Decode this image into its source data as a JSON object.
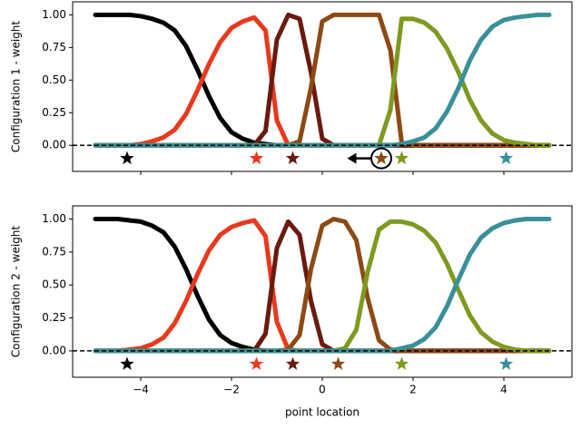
{
  "chart_data": [
    {
      "type": "line",
      "ylabel": "Configuration 1 - weight",
      "xlim": [
        -5.5,
        5.5
      ],
      "ylim": [
        -0.2,
        1.1
      ],
      "xticks": [
        -4,
        -2,
        0,
        2,
        4
      ],
      "yticks": [
        {
          "value": 0,
          "label": "0.00"
        },
        {
          "value": 0.25,
          "label": "0.25"
        },
        {
          "value": 0.5,
          "label": "0.50"
        },
        {
          "value": 0.75,
          "label": "0.75"
        },
        {
          "value": 1,
          "label": "1.00"
        }
      ],
      "hline": 0,
      "x": [
        -5,
        -4.75,
        -4.5,
        -4.25,
        -4,
        -3.75,
        -3.5,
        -3.25,
        -3,
        -2.75,
        -2.5,
        -2.25,
        -2,
        -1.75,
        -1.5,
        -1.25,
        -1,
        -0.75,
        -0.5,
        -0.25,
        0,
        0.25,
        0.5,
        0.75,
        1,
        1.25,
        1.5,
        1.75,
        2,
        2.25,
        2.5,
        2.75,
        3,
        3.25,
        3.5,
        3.75,
        4,
        4.25,
        4.5,
        4.75,
        5
      ],
      "series": [
        {
          "color": "#000000",
          "center": [
            -4.3,
            -0.1
          ],
          "values": [
            1,
            1,
            1,
            1,
            0.99,
            0.97,
            0.94,
            0.88,
            0.76,
            0.58,
            0.38,
            0.21,
            0.1,
            0.05,
            0.02,
            0.01,
            0,
            0,
            0,
            0,
            0,
            0,
            0,
            0,
            0,
            0,
            0,
            0,
            0,
            0,
            0,
            0,
            0,
            0,
            0,
            0,
            0,
            0,
            0,
            0,
            0
          ]
        },
        {
          "color": "#e8391d",
          "center": [
            -1.45,
            -0.1
          ],
          "values": [
            0,
            0,
            0,
            0,
            0.01,
            0.03,
            0.06,
            0.12,
            0.24,
            0.42,
            0.62,
            0.79,
            0.9,
            0.95,
            0.98,
            0.88,
            0.19,
            0,
            0,
            0,
            0,
            0,
            0,
            0,
            0,
            0,
            0,
            0,
            0,
            0,
            0,
            0,
            0,
            0,
            0,
            0,
            0,
            0,
            0,
            0,
            0
          ]
        },
        {
          "color": "#6b1a10",
          "center": [
            -0.65,
            -0.1
          ],
          "values": [
            0,
            0,
            0,
            0,
            0,
            0,
            0,
            0,
            0,
            0,
            0,
            0,
            0,
            0,
            0,
            0.11,
            0.81,
            1,
            0.97,
            0.56,
            0.05,
            0,
            0,
            0,
            0,
            0,
            0,
            0,
            0,
            0,
            0,
            0,
            0,
            0,
            0,
            0,
            0,
            0,
            0,
            0,
            0
          ]
        },
        {
          "color": "#8c4a14",
          "center": [
            1.3,
            -0.1
          ],
          "values": [
            0,
            0,
            0,
            0,
            0,
            0,
            0,
            0,
            0,
            0,
            0,
            0,
            0,
            0,
            0,
            0,
            0,
            0,
            0.03,
            0.44,
            0.95,
            1,
            1,
            1,
            1,
            1,
            0.73,
            0.02,
            0,
            0,
            0,
            0,
            0,
            0,
            0,
            0,
            0,
            0,
            0,
            0,
            0
          ]
        },
        {
          "color": "#7e9a1f",
          "center": [
            1.75,
            -0.1
          ],
          "values": [
            0,
            0,
            0,
            0,
            0,
            0,
            0,
            0,
            0,
            0,
            0,
            0,
            0,
            0,
            0,
            0,
            0,
            0,
            0,
            0,
            0,
            0,
            0,
            0,
            0,
            0,
            0.27,
            0.97,
            0.97,
            0.94,
            0.87,
            0.74,
            0.56,
            0.35,
            0.19,
            0.09,
            0.04,
            0.02,
            0.01,
            0,
            0
          ]
        },
        {
          "color": "#3a9099",
          "center": [
            4.05,
            -0.1
          ],
          "values": [
            0,
            0,
            0,
            0,
            0,
            0,
            0,
            0,
            0,
            0,
            0,
            0,
            0,
            0,
            0,
            0,
            0,
            0,
            0,
            0,
            0,
            0,
            0,
            0,
            0,
            0,
            0,
            0.01,
            0.03,
            0.06,
            0.13,
            0.26,
            0.44,
            0.65,
            0.81,
            0.91,
            0.96,
            0.98,
            0.99,
            1,
            1
          ]
        }
      ],
      "arrow": {
        "x_from": 1.3,
        "x_to": 0.55,
        "y": -0.1
      }
    },
    {
      "type": "line",
      "ylabel": "Configuration 2 - weight",
      "xlabel": "point location",
      "xlim": [
        -5.5,
        5.5
      ],
      "ylim": [
        -0.2,
        1.1
      ],
      "xticks": [
        {
          "value": -4,
          "label": "−4"
        },
        {
          "value": -2,
          "label": "−2"
        },
        0,
        2,
        4
      ],
      "yticks": [
        {
          "value": 0,
          "label": "0.00"
        },
        {
          "value": 0.25,
          "label": "0.25"
        },
        {
          "value": 0.5,
          "label": "0.50"
        },
        {
          "value": 0.75,
          "label": "0.75"
        },
        {
          "value": 1,
          "label": "1.00"
        }
      ],
      "hline": 0,
      "x": [
        -5,
        -4.75,
        -4.5,
        -4.25,
        -4,
        -3.75,
        -3.5,
        -3.25,
        -3,
        -2.75,
        -2.5,
        -2.25,
        -2,
        -1.75,
        -1.5,
        -1.25,
        -1,
        -0.75,
        -0.5,
        -0.25,
        0,
        0.25,
        0.5,
        0.75,
        1,
        1.25,
        1.5,
        1.75,
        2,
        2.25,
        2.5,
        2.75,
        3,
        3.25,
        3.5,
        3.75,
        4,
        4.25,
        4.5,
        4.75,
        5
      ],
      "series": [
        {
          "color": "#000000",
          "center": [
            -4.3,
            -0.1
          ],
          "values": [
            1,
            1,
            1,
            0.99,
            0.98,
            0.95,
            0.9,
            0.79,
            0.62,
            0.42,
            0.24,
            0.12,
            0.06,
            0.03,
            0.01,
            0,
            0,
            0,
            0,
            0,
            0,
            0,
            0,
            0,
            0,
            0,
            0,
            0,
            0,
            0,
            0,
            0,
            0,
            0,
            0,
            0,
            0,
            0,
            0,
            0,
            0
          ]
        },
        {
          "color": "#e8391d",
          "center": [
            -1.45,
            -0.1
          ],
          "values": [
            0,
            0,
            0,
            0.01,
            0.02,
            0.05,
            0.1,
            0.21,
            0.38,
            0.58,
            0.76,
            0.88,
            0.94,
            0.97,
            0.99,
            0.87,
            0.22,
            0.01,
            0,
            0,
            0,
            0,
            0,
            0,
            0,
            0,
            0,
            0,
            0,
            0,
            0,
            0,
            0,
            0,
            0,
            0,
            0,
            0,
            0,
            0,
            0
          ]
        },
        {
          "color": "#6b1a10",
          "center": [
            -0.65,
            -0.1
          ],
          "values": [
            0,
            0,
            0,
            0,
            0,
            0,
            0,
            0,
            0,
            0,
            0,
            0,
            0,
            0,
            0,
            0.13,
            0.78,
            0.98,
            0.88,
            0.38,
            0.05,
            0,
            0,
            0,
            0,
            0,
            0,
            0,
            0,
            0,
            0,
            0,
            0,
            0,
            0,
            0,
            0,
            0,
            0,
            0,
            0
          ]
        },
        {
          "color": "#8c4a14",
          "center": [
            0.35,
            -0.1
          ],
          "values": [
            0,
            0,
            0,
            0,
            0,
            0,
            0,
            0,
            0,
            0,
            0,
            0,
            0,
            0,
            0,
            0,
            0,
            0.01,
            0.12,
            0.62,
            0.95,
            1,
            0.98,
            0.84,
            0.4,
            0.08,
            0.01,
            0,
            0,
            0,
            0,
            0,
            0,
            0,
            0,
            0,
            0,
            0,
            0,
            0,
            0
          ]
        },
        {
          "color": "#7e9a1f",
          "center": [
            1.75,
            -0.1
          ],
          "values": [
            0,
            0,
            0,
            0,
            0,
            0,
            0,
            0,
            0,
            0,
            0,
            0,
            0,
            0,
            0,
            0,
            0,
            0,
            0,
            0,
            0,
            0,
            0.02,
            0.16,
            0.6,
            0.92,
            0.98,
            0.98,
            0.96,
            0.91,
            0.82,
            0.66,
            0.46,
            0.27,
            0.14,
            0.07,
            0.03,
            0.01,
            0,
            0,
            0
          ]
        },
        {
          "color": "#3a9099",
          "center": [
            4.05,
            -0.1
          ],
          "values": [
            0,
            0,
            0,
            0,
            0,
            0,
            0,
            0,
            0,
            0,
            0,
            0,
            0,
            0,
            0,
            0,
            0,
            0,
            0,
            0,
            0,
            0,
            0,
            0,
            0,
            0,
            0,
            0.02,
            0.04,
            0.09,
            0.18,
            0.34,
            0.54,
            0.73,
            0.86,
            0.93,
            0.97,
            0.99,
            1,
            1,
            1
          ]
        }
      ]
    }
  ]
}
